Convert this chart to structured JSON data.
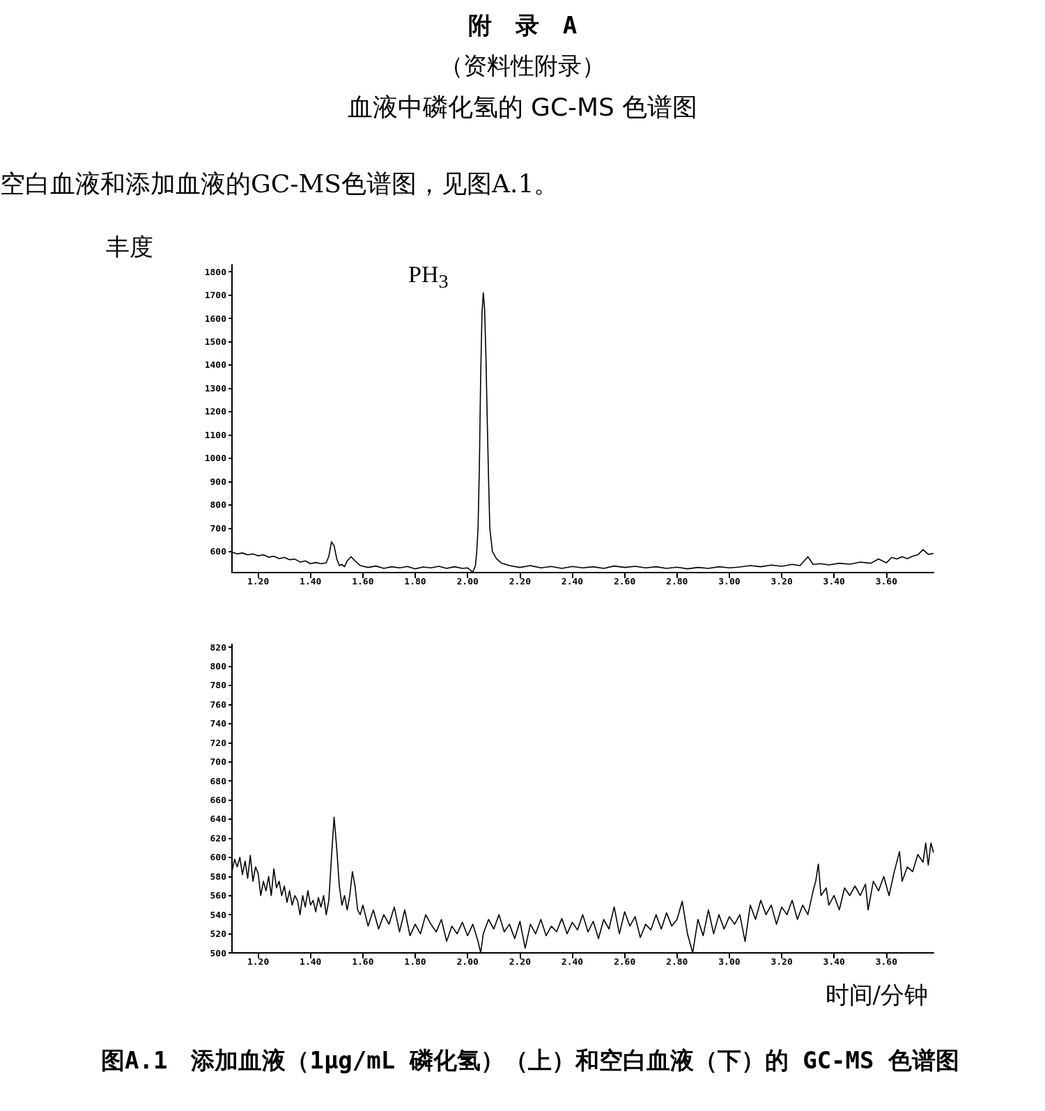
{
  "chart_data": [
    {
      "type": "line",
      "title": "附　录　A",
      "subtitle": "（资料性附录）",
      "ylabel": "丰度",
      "color": "#000000",
      "annotations": [
        "血液中磷化氢的 GC-MS 色谱图",
        "空白血液和添加血液的GC-MS色谱图，见图A.1。",
        {
          "text": "PH$_{3}$",
          "x": 2.06,
          "y": 1710
        }
      ],
      "xlim": [
        1.1,
        3.78
      ],
      "ylim": [
        510,
        1830
      ],
      "xticks": [
        {
          "value": 1.2,
          "label": "1.20"
        },
        {
          "value": 1.4,
          "label": "1.40"
        },
        {
          "value": 1.6,
          "label": "1.60"
        },
        {
          "value": 1.8,
          "label": "1.80"
        },
        {
          "value": 2.0,
          "label": "2.00"
        },
        {
          "value": 2.2,
          "label": "2.20"
        },
        {
          "value": 2.4,
          "label": "2.40"
        },
        {
          "value": 2.6,
          "label": "2.60"
        },
        {
          "value": 2.8,
          "label": "2.80"
        },
        {
          "value": 3.0,
          "label": "3.00"
        },
        {
          "value": 3.2,
          "label": "3.20"
        },
        {
          "value": 3.4,
          "label": "3.40"
        },
        {
          "value": 3.6,
          "label": "3.60"
        }
      ],
      "yticks": [
        600,
        700,
        800,
        900,
        1000,
        1100,
        1200,
        1300,
        1400,
        1500,
        1600,
        1700,
        1800
      ],
      "x": [
        1.1,
        1.12,
        1.14,
        1.16,
        1.18,
        1.2,
        1.22,
        1.24,
        1.26,
        1.28,
        1.3,
        1.32,
        1.34,
        1.36,
        1.38,
        1.4,
        1.42,
        1.44,
        1.46,
        1.47,
        1.48,
        1.49,
        1.5,
        1.51,
        1.52,
        1.53,
        1.54,
        1.555,
        1.57,
        1.59,
        1.62,
        1.65,
        1.68,
        1.71,
        1.74,
        1.77,
        1.8,
        1.83,
        1.86,
        1.89,
        1.92,
        1.95,
        1.98,
        2.0,
        2.02,
        2.03,
        2.035,
        2.04,
        2.045,
        2.05,
        2.055,
        2.06,
        2.065,
        2.07,
        2.075,
        2.08,
        2.085,
        2.095,
        2.11,
        2.13,
        2.16,
        2.2,
        2.24,
        2.28,
        2.32,
        2.36,
        2.4,
        2.44,
        2.48,
        2.52,
        2.56,
        2.6,
        2.64,
        2.68,
        2.72,
        2.76,
        2.8,
        2.84,
        2.88,
        2.92,
        2.96,
        3.0,
        3.04,
        3.08,
        3.12,
        3.16,
        3.2,
        3.24,
        3.27,
        3.3,
        3.32,
        3.35,
        3.38,
        3.42,
        3.46,
        3.5,
        3.54,
        3.57,
        3.6,
        3.62,
        3.64,
        3.66,
        3.68,
        3.7,
        3.72,
        3.74,
        3.76,
        3.78
      ],
      "values": [
        598,
        590,
        594,
        586,
        590,
        582,
        586,
        576,
        580,
        570,
        575,
        565,
        568,
        555,
        560,
        548,
        553,
        548,
        552,
        580,
        642,
        625,
        570,
        540,
        545,
        535,
        560,
        578,
        560,
        540,
        532,
        538,
        528,
        535,
        530,
        536,
        526,
        534,
        530,
        537,
        528,
        535,
        528,
        530,
        512,
        540,
        600,
        700,
        960,
        1350,
        1620,
        1710,
        1640,
        1440,
        1170,
        920,
        700,
        600,
        570,
        550,
        540,
        532,
        540,
        530,
        536,
        528,
        536,
        530,
        535,
        528,
        538,
        532,
        537,
        530,
        535,
        528,
        533,
        526,
        532,
        528,
        535,
        530,
        534,
        540,
        535,
        542,
        537,
        545,
        540,
        578,
        545,
        548,
        543,
        550,
        546,
        555,
        550,
        568,
        552,
        575,
        568,
        578,
        570,
        580,
        586,
        608,
        588,
        592
      ]
    },
    {
      "type": "line",
      "xlabel": "时间/分钟",
      "color": "#000000",
      "annotations": [
        "图A.1　添加血液（1μg/mL 磷化氢）（上）和空白血液（下）的 GC-MS 色谱图"
      ],
      "xlim": [
        1.1,
        3.78
      ],
      "ylim": [
        500,
        823
      ],
      "xticks": [
        {
          "value": 1.2,
          "label": "1.20"
        },
        {
          "value": 1.4,
          "label": "1.40"
        },
        {
          "value": 1.6,
          "label": "1.60"
        },
        {
          "value": 1.8,
          "label": "1.80"
        },
        {
          "value": 2.0,
          "label": "2.00"
        },
        {
          "value": 2.2,
          "label": "2.20"
        },
        {
          "value": 2.4,
          "label": "2.40"
        },
        {
          "value": 2.6,
          "label": "2.60"
        },
        {
          "value": 2.8,
          "label": "2.80"
        },
        {
          "value": 3.0,
          "label": "3.00"
        },
        {
          "value": 3.2,
          "label": "3.20"
        },
        {
          "value": 3.4,
          "label": "3.40"
        },
        {
          "value": 3.6,
          "label": "3.60"
        }
      ],
      "yticks": [
        500,
        520,
        540,
        560,
        580,
        600,
        620,
        640,
        660,
        680,
        700,
        720,
        740,
        760,
        780,
        800,
        820
      ],
      "x": [
        1.1,
        1.11,
        1.12,
        1.13,
        1.14,
        1.15,
        1.16,
        1.17,
        1.18,
        1.19,
        1.2,
        1.21,
        1.22,
        1.23,
        1.24,
        1.25,
        1.26,
        1.27,
        1.28,
        1.29,
        1.3,
        1.31,
        1.32,
        1.33,
        1.34,
        1.35,
        1.36,
        1.37,
        1.38,
        1.39,
        1.4,
        1.41,
        1.42,
        1.43,
        1.44,
        1.45,
        1.46,
        1.47,
        1.48,
        1.49,
        1.5,
        1.51,
        1.52,
        1.53,
        1.54,
        1.55,
        1.56,
        1.57,
        1.58,
        1.59,
        1.6,
        1.62,
        1.64,
        1.66,
        1.68,
        1.7,
        1.72,
        1.74,
        1.76,
        1.78,
        1.8,
        1.82,
        1.84,
        1.86,
        1.88,
        1.9,
        1.92,
        1.94,
        1.96,
        1.98,
        2.0,
        2.02,
        2.04,
        2.05,
        2.06,
        2.08,
        2.1,
        2.12,
        2.14,
        2.16,
        2.18,
        2.2,
        2.22,
        2.24,
        2.26,
        2.28,
        2.3,
        2.32,
        2.34,
        2.36,
        2.38,
        2.4,
        2.42,
        2.44,
        2.46,
        2.48,
        2.5,
        2.52,
        2.54,
        2.56,
        2.58,
        2.6,
        2.62,
        2.64,
        2.66,
        2.68,
        2.7,
        2.72,
        2.74,
        2.76,
        2.78,
        2.8,
        2.82,
        2.84,
        2.86,
        2.88,
        2.9,
        2.92,
        2.94,
        2.96,
        2.98,
        3.0,
        3.02,
        3.04,
        3.06,
        3.08,
        3.1,
        3.12,
        3.14,
        3.16,
        3.18,
        3.2,
        3.22,
        3.24,
        3.26,
        3.28,
        3.3,
        3.32,
        3.33,
        3.34,
        3.35,
        3.37,
        3.38,
        3.4,
        3.42,
        3.44,
        3.46,
        3.48,
        3.5,
        3.52,
        3.53,
        3.55,
        3.57,
        3.59,
        3.61,
        3.63,
        3.65,
        3.66,
        3.68,
        3.7,
        3.72,
        3.74,
        3.75,
        3.76,
        3.77,
        3.78
      ],
      "values": [
        585,
        598,
        590,
        600,
        582,
        596,
        578,
        602,
        575,
        590,
        583,
        560,
        575,
        565,
        580,
        560,
        588,
        568,
        575,
        560,
        570,
        553,
        565,
        550,
        560,
        555,
        540,
        560,
        548,
        565,
        550,
        555,
        543,
        558,
        548,
        560,
        540,
        555,
        600,
        642,
        610,
        570,
        550,
        560,
        545,
        560,
        585,
        570,
        545,
        540,
        550,
        528,
        545,
        525,
        540,
        530,
        548,
        522,
        545,
        518,
        530,
        520,
        540,
        530,
        522,
        535,
        512,
        528,
        520,
        532,
        518,
        530,
        512,
        500,
        520,
        535,
        525,
        540,
        522,
        530,
        515,
        533,
        505,
        530,
        520,
        535,
        518,
        528,
        522,
        536,
        520,
        532,
        524,
        540,
        522,
        533,
        515,
        535,
        525,
        548,
        520,
        543,
        528,
        538,
        516,
        530,
        524,
        540,
        525,
        542,
        528,
        535,
        554,
        520,
        500,
        535,
        518,
        545,
        520,
        540,
        525,
        538,
        530,
        540,
        512,
        550,
        535,
        555,
        540,
        550,
        530,
        548,
        540,
        555,
        535,
        550,
        540,
        565,
        575,
        593,
        560,
        568,
        550,
        560,
        545,
        568,
        560,
        570,
        560,
        572,
        545,
        575,
        565,
        580,
        560,
        585,
        606,
        575,
        590,
        585,
        603,
        595,
        615,
        592,
        615,
        605
      ]
    }
  ]
}
